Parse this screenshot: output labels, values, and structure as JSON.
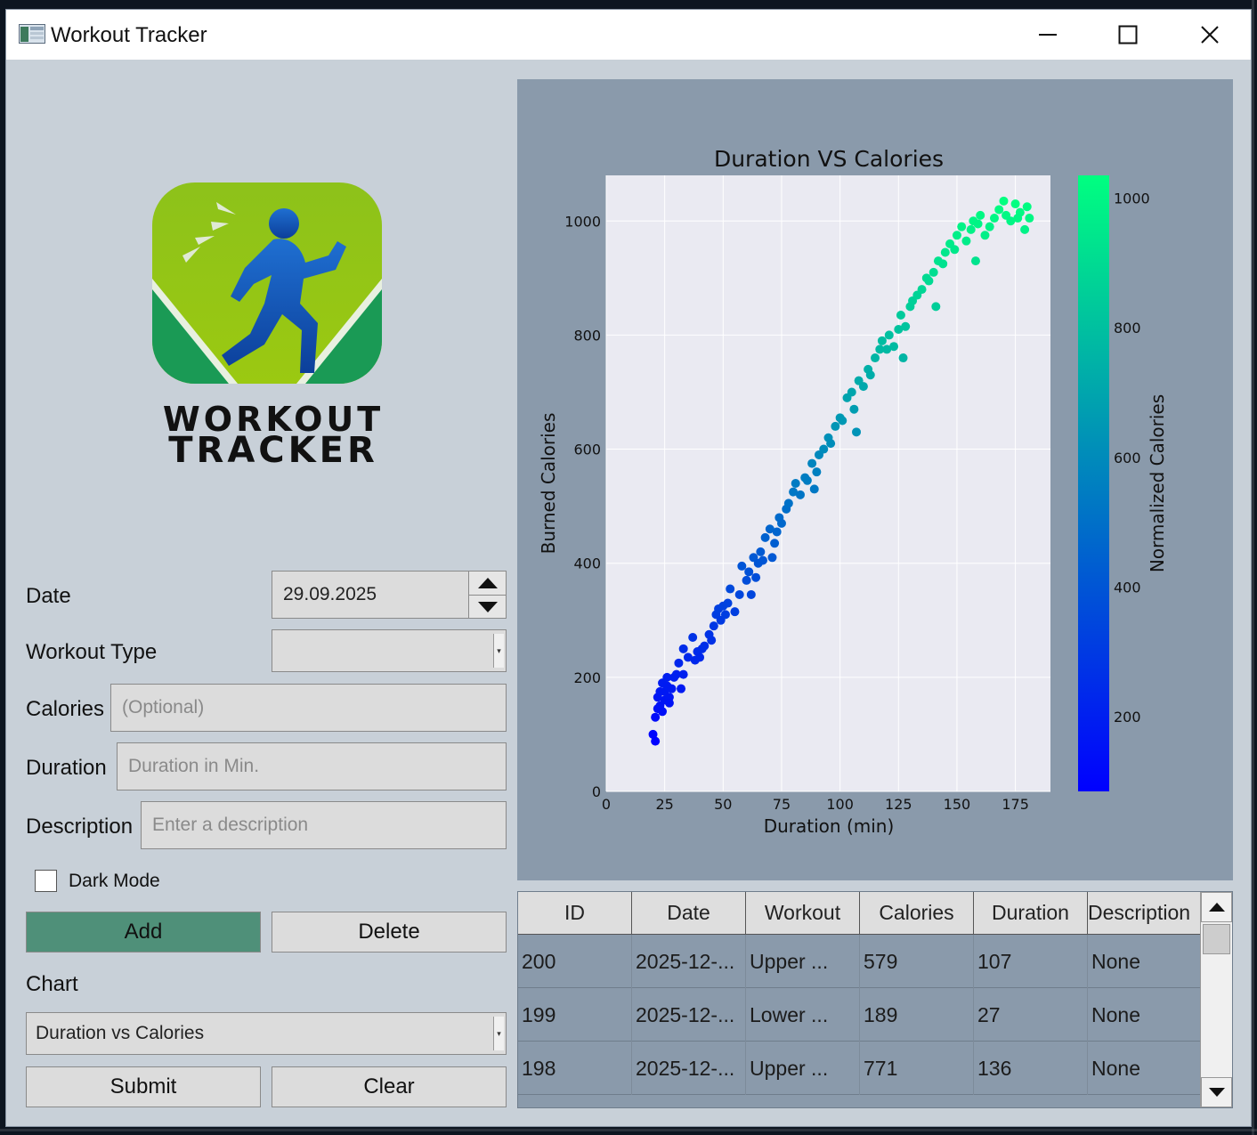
{
  "window": {
    "title": "Workout Tracker",
    "logo_line1": "WORKOUT",
    "logo_line2": "TRACKER"
  },
  "form": {
    "date_label": "Date",
    "date_value": "29.09.2025",
    "workout_type_label": "Workout Type",
    "workout_type_value": "",
    "calories_label": "Calories",
    "calories_placeholder": "(Optional)",
    "duration_label": "Duration",
    "duration_placeholder": "Duration in Min.",
    "description_label": "Description",
    "description_placeholder": "Enter a description",
    "dark_mode_label": "Dark Mode",
    "dark_mode_checked": false,
    "add_label": "Add",
    "delete_label": "Delete",
    "chart_label": "Chart",
    "chart_value": "Duration vs Calories",
    "submit_label": "Submit",
    "clear_label": "Clear"
  },
  "colors": {
    "primary_button": "#4f9079",
    "chart_panel": "#8a9aab",
    "window_bg": "#c8d0d8",
    "colormap_low": "#0000ff",
    "colormap_high": "#00ff80"
  },
  "table": {
    "columns": [
      "ID",
      "Date",
      "Workout",
      "Calories",
      "Duration",
      "Description"
    ],
    "rows": [
      [
        "200",
        "2025-12-...",
        "Upper ...",
        "579",
        "107",
        "None"
      ],
      [
        "199",
        "2025-12-...",
        "Lower ...",
        "189",
        "27",
        "None"
      ],
      [
        "198",
        "2025-12-...",
        "Upper ...",
        "771",
        "136",
        "None"
      ]
    ]
  },
  "chart_data": {
    "type": "scatter",
    "title": "Duration VS Calories",
    "xlabel": "Duration (min)",
    "ylabel": "Burned Calories",
    "colorbar_label": "Normalized Calories",
    "xlim": [
      0,
      190
    ],
    "ylim": [
      0,
      1080
    ],
    "xticks": [
      0,
      25,
      50,
      75,
      100,
      125,
      150,
      175
    ],
    "yticks": [
      0,
      200,
      400,
      600,
      800,
      1000
    ],
    "colorbar_range": [
      85,
      1035
    ],
    "colorbar_ticks": [
      200,
      400,
      600,
      800,
      1000
    ],
    "grid": true,
    "x": [
      20,
      21,
      21,
      22,
      22,
      23,
      23,
      24,
      24,
      25,
      25,
      26,
      26,
      27,
      27,
      28,
      29,
      30,
      31,
      32,
      33,
      35,
      37,
      38,
      39,
      40,
      41,
      42,
      44,
      46,
      47,
      48,
      49,
      50,
      51,
      52,
      53,
      55,
      57,
      58,
      60,
      61,
      63,
      64,
      65,
      66,
      67,
      68,
      70,
      72,
      73,
      74,
      75,
      77,
      78,
      80,
      81,
      83,
      85,
      86,
      88,
      90,
      91,
      93,
      95,
      96,
      98,
      100,
      101,
      103,
      105,
      106,
      108,
      110,
      112,
      113,
      115,
      117,
      118,
      120,
      121,
      123,
      125,
      126,
      128,
      130,
      131,
      133,
      135,
      137,
      138,
      140,
      142,
      144,
      145,
      147,
      149,
      150,
      152,
      154,
      156,
      157,
      159,
      160,
      162,
      164,
      166,
      168,
      170,
      171,
      173,
      175,
      177,
      179,
      180,
      181,
      33,
      45,
      62,
      71,
      89,
      107,
      127,
      141,
      158,
      176
    ],
    "y": [
      100,
      88,
      130,
      165,
      145,
      175,
      150,
      190,
      140,
      175,
      160,
      200,
      185,
      165,
      155,
      180,
      200,
      205,
      225,
      180,
      250,
      235,
      270,
      230,
      245,
      235,
      250,
      255,
      275,
      290,
      310,
      320,
      300,
      325,
      310,
      330,
      355,
      315,
      345,
      395,
      370,
      385,
      410,
      375,
      400,
      420,
      405,
      445,
      460,
      435,
      455,
      480,
      470,
      495,
      505,
      525,
      540,
      520,
      550,
      545,
      575,
      560,
      590,
      600,
      620,
      610,
      640,
      655,
      650,
      690,
      700,
      670,
      720,
      710,
      740,
      730,
      760,
      775,
      790,
      775,
      800,
      780,
      810,
      835,
      815,
      850,
      860,
      870,
      880,
      900,
      895,
      910,
      930,
      925,
      945,
      960,
      950,
      975,
      990,
      965,
      985,
      1000,
      995,
      1010,
      975,
      990,
      1005,
      1020,
      1035,
      1010,
      1000,
      1030,
      1015,
      985,
      1025,
      1005,
      205,
      265,
      345,
      410,
      530,
      630,
      760,
      850,
      930,
      1005
    ]
  }
}
